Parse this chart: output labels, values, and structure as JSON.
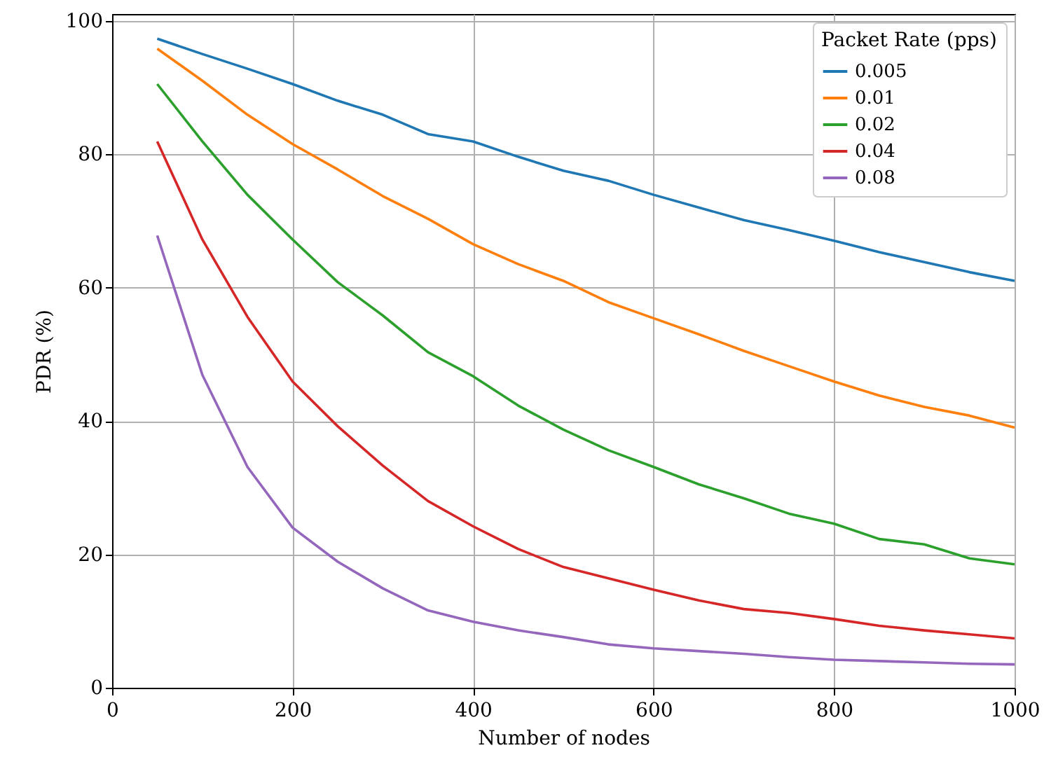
{
  "chart_data": {
    "type": "line",
    "xlabel": "Number of nodes",
    "ylabel": "PDR (%)",
    "legend_title": "Packet Rate (pps)",
    "x": [
      50,
      100,
      150,
      200,
      250,
      300,
      350,
      400,
      450,
      500,
      550,
      600,
      650,
      700,
      750,
      800,
      850,
      900,
      950,
      1000
    ],
    "series": [
      {
        "name": "0.005",
        "color": "#1f77b4",
        "values": [
          97.3,
          95,
          92.8,
          90.5,
          88,
          85.9,
          83,
          81.9,
          79.6,
          77.5,
          76,
          73.9,
          72,
          70.1,
          68.6,
          67,
          65.3,
          63.8,
          62.3,
          61
        ]
      },
      {
        "name": "0.01",
        "color": "#ff7f0e",
        "values": [
          95.8,
          91,
          85.9,
          81.5,
          77.7,
          73.7,
          70.3,
          66.5,
          63.5,
          61,
          57.8,
          55.4,
          53,
          50.5,
          48.2,
          45.9,
          43.8,
          42.1,
          40.8,
          39
        ]
      },
      {
        "name": "0.02",
        "color": "#2ca02c",
        "values": [
          90.5,
          81.9,
          73.9,
          67.2,
          60.8,
          55.8,
          50.3,
          46.7,
          42.3,
          38.7,
          35.6,
          33.1,
          30.5,
          28.4,
          26.1,
          24.6,
          22.3,
          21.5,
          19.4,
          18.5
        ]
      },
      {
        "name": "0.04",
        "color": "#d62728",
        "values": [
          81.9,
          67.2,
          55.6,
          45.9,
          39.2,
          33.3,
          28,
          24.2,
          20.8,
          18.1,
          16.4,
          14.7,
          13.1,
          11.8,
          11.2,
          10.3,
          9.3,
          8.6,
          8,
          7.4
        ]
      },
      {
        "name": "0.08",
        "color": "#9467bd",
        "values": [
          67.8,
          46.9,
          33.1,
          24,
          18.9,
          14.9,
          11.6,
          9.9,
          8.6,
          7.6,
          6.5,
          5.9,
          5.5,
          5.1,
          4.6,
          4.2,
          4,
          3.8,
          3.6,
          3.5
        ]
      }
    ],
    "xlim": [
      0,
      1000
    ],
    "xticks": [
      0,
      200,
      400,
      600,
      800,
      1000
    ],
    "ylim": [
      0,
      101
    ],
    "yticks": [
      0,
      20,
      40,
      60,
      80,
      100
    ],
    "grid": true,
    "legend": "top right",
    "marker": "none",
    "line_style": "solid"
  }
}
